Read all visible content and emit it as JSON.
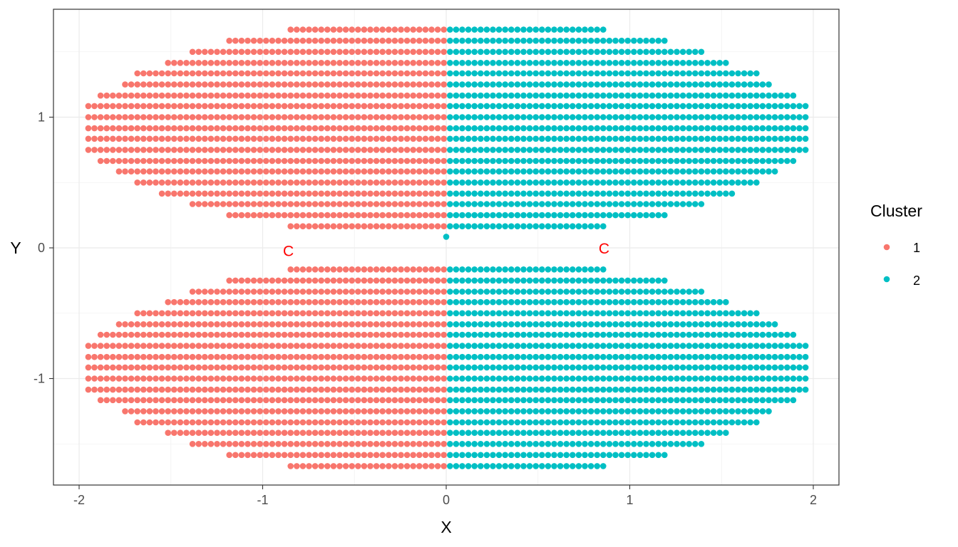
{
  "chart_data": {
    "type": "scatter",
    "xlabel": "X",
    "ylabel": "Y",
    "xlim": [
      -2.0,
      2.0
    ],
    "ylim": [
      -1.8,
      1.8
    ],
    "x_ticks": [
      -2,
      -1,
      0,
      1,
      2
    ],
    "x_tick_labels": [
      "-2",
      "-1",
      "0",
      "1",
      "2"
    ],
    "y_ticks": [
      -1,
      0,
      1
    ],
    "y_tick_labels": [
      "-1",
      "0",
      "1"
    ],
    "grid": true,
    "legend": {
      "title": "Cluster",
      "position": "right",
      "entries": [
        "1",
        "2"
      ]
    },
    "series_colors": {
      "1": "#F8766D",
      "2": "#00BFC4"
    },
    "annotation_color": "#FF0000",
    "grid_structure": {
      "x_start": -1.95,
      "x_step": 0.0334,
      "x_count": 118,
      "y_step": 0.0834,
      "upper_rows": [
        {
          "y": 1.67,
          "xmin": -0.85,
          "xmax": 0.85
        },
        {
          "y": 1.585,
          "xmin": -1.2,
          "xmax": 1.2
        },
        {
          "y": 1.5,
          "xmin": -1.4,
          "xmax": 1.4
        },
        {
          "y": 1.415,
          "xmin": -1.53,
          "xmax": 1.53
        },
        {
          "y": 1.335,
          "xmin": -1.7,
          "xmax": 1.7
        },
        {
          "y": 1.25,
          "xmin": -1.75,
          "xmax": 1.75
        },
        {
          "y": 1.165,
          "xmin": -1.9,
          "xmax": 1.9
        },
        {
          "y": 1.085,
          "xmin": -1.95,
          "xmax": 1.95
        },
        {
          "y": 1.0,
          "xmin": -1.95,
          "xmax": 1.95
        },
        {
          "y": 0.915,
          "xmin": -1.95,
          "xmax": 1.95
        },
        {
          "y": 0.835,
          "xmin": -1.95,
          "xmax": 1.95
        },
        {
          "y": 0.75,
          "xmin": -1.95,
          "xmax": 1.95
        },
        {
          "y": 0.665,
          "xmin": -1.9,
          "xmax": 1.9
        },
        {
          "y": 0.585,
          "xmin": -1.8,
          "xmax": 1.8
        },
        {
          "y": 0.5,
          "xmin": -1.7,
          "xmax": 1.7
        },
        {
          "y": 0.415,
          "xmin": -1.55,
          "xmax": 1.55
        },
        {
          "y": 0.335,
          "xmin": -1.4,
          "xmax": 1.4
        },
        {
          "y": 0.25,
          "xmin": -1.2,
          "xmax": 1.2
        },
        {
          "y": 0.165,
          "xmin": -0.85,
          "xmax": 0.85
        }
      ],
      "lower_rows": [
        {
          "y": -0.165,
          "xmin": -0.85,
          "xmax": 0.85
        },
        {
          "y": -0.25,
          "xmin": -1.2,
          "xmax": 1.2
        },
        {
          "y": -0.335,
          "xmin": -1.4,
          "xmax": 1.4
        },
        {
          "y": -0.415,
          "xmin": -1.53,
          "xmax": 1.53
        },
        {
          "y": -0.5,
          "xmin": -1.7,
          "xmax": 1.7
        },
        {
          "y": -0.585,
          "xmin": -1.8,
          "xmax": 1.8
        },
        {
          "y": -0.665,
          "xmin": -1.9,
          "xmax": 1.9
        },
        {
          "y": -0.75,
          "xmin": -1.95,
          "xmax": 1.95
        },
        {
          "y": -0.835,
          "xmin": -1.95,
          "xmax": 1.95
        },
        {
          "y": -0.915,
          "xmin": -1.95,
          "xmax": 1.95
        },
        {
          "y": -1.0,
          "xmin": -1.95,
          "xmax": 1.95
        },
        {
          "y": -1.085,
          "xmin": -1.95,
          "xmax": 1.95
        },
        {
          "y": -1.165,
          "xmin": -1.9,
          "xmax": 1.9
        },
        {
          "y": -1.25,
          "xmin": -1.75,
          "xmax": 1.75
        },
        {
          "y": -1.335,
          "xmin": -1.7,
          "xmax": 1.7
        },
        {
          "y": -1.415,
          "xmin": -1.53,
          "xmax": 1.53
        },
        {
          "y": -1.5,
          "xmin": -1.4,
          "xmax": 1.4
        },
        {
          "y": -1.585,
          "xmin": -1.2,
          "xmax": 1.2
        },
        {
          "y": -1.67,
          "xmin": -0.85,
          "xmax": 0.85
        }
      ],
      "cluster_rule": "x < 0 -> cluster 1; x >= 0 -> cluster 2",
      "extra_points": [
        {
          "x": 0.0,
          "y": 0.085,
          "cluster": "2"
        }
      ]
    },
    "annotations": [
      {
        "text": "C",
        "x": -0.86,
        "y": -0.02
      },
      {
        "text": "C",
        "x": 0.86,
        "y": 0.0
      }
    ]
  }
}
